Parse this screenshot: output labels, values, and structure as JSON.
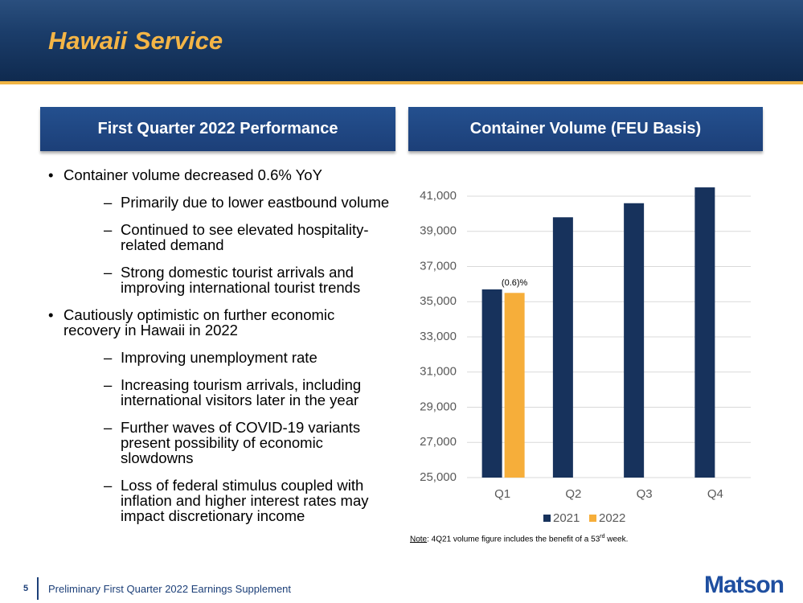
{
  "header": {
    "title": "Hawaii Service"
  },
  "left_panel": {
    "heading": "First Quarter 2022 Performance",
    "bullets": [
      {
        "text": "Container volume decreased 0.6% YoY",
        "sub": [
          "Primarily due to lower eastbound volume",
          "Continued to see elevated hospitality-related demand",
          "Strong domestic tourist arrivals and improving international tourist trends"
        ]
      },
      {
        "text": "Cautiously optimistic on further economic recovery in Hawaii in 2022",
        "sub": [
          "Improving unemployment rate",
          "Increasing tourism arrivals, including international visitors later in the year",
          "Further waves of COVID-19 variants present possibility of economic slowdowns",
          "Loss of federal stimulus coupled with inflation and higher interest rates may impact discretionary income"
        ]
      }
    ]
  },
  "chart_data": {
    "type": "bar",
    "title": "Container Volume (FEU Basis)",
    "categories": [
      "Q1",
      "Q2",
      "Q3",
      "Q4"
    ],
    "series": [
      {
        "name": "2021",
        "color": "#17325c",
        "values": [
          35700,
          39800,
          40600,
          41500
        ]
      },
      {
        "name": "2022",
        "color": "#f6ae3a",
        "values": [
          35500,
          null,
          null,
          null
        ]
      }
    ],
    "annotation": "(0.6)%",
    "ylim": [
      25000,
      41500
    ],
    "yticks": [
      {
        "value": 25000,
        "label": "25,000"
      },
      {
        "value": 27000,
        "label": "27,000"
      },
      {
        "value": 29000,
        "label": "29,000"
      },
      {
        "value": 31000,
        "label": "31,000"
      },
      {
        "value": 33000,
        "label": "33,000"
      },
      {
        "value": 35000,
        "label": "35,000"
      },
      {
        "value": 37000,
        "label": "37,000"
      },
      {
        "value": 39000,
        "label": "39,000"
      },
      {
        "value": 41000,
        "label": "41,000"
      }
    ],
    "grid": true,
    "legend": "bottom",
    "note": {
      "label": "Note",
      "text": ":  4Q21 volume figure includes the benefit of a 53",
      "sup": "rd",
      "end": " week."
    }
  },
  "footer": {
    "page": "5",
    "text": "Preliminary First Quarter 2022 Earnings Supplement",
    "logo": "Matson"
  }
}
